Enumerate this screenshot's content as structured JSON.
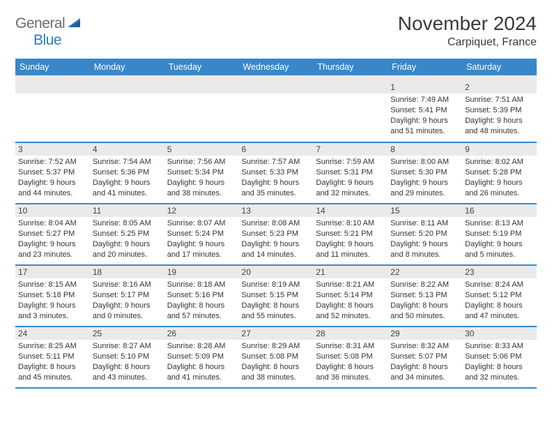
{
  "logo": {
    "general": "General",
    "blue": "Blue"
  },
  "title": "November 2024",
  "location": "Carpiquet, France",
  "colors": {
    "header_bg": "#3a87c8",
    "header_text": "#ffffff",
    "daynum_bg": "#e9eaec",
    "rule": "#3a87c8",
    "logo_gray": "#6b6b6b",
    "logo_blue": "#2e7cc0",
    "text": "#333333"
  },
  "day_headers": [
    "Sunday",
    "Monday",
    "Tuesday",
    "Wednesday",
    "Thursday",
    "Friday",
    "Saturday"
  ],
  "weeks": [
    [
      {
        "n": "",
        "sr": "",
        "ss": "",
        "dl": ""
      },
      {
        "n": "",
        "sr": "",
        "ss": "",
        "dl": ""
      },
      {
        "n": "",
        "sr": "",
        "ss": "",
        "dl": ""
      },
      {
        "n": "",
        "sr": "",
        "ss": "",
        "dl": ""
      },
      {
        "n": "",
        "sr": "",
        "ss": "",
        "dl": ""
      },
      {
        "n": "1",
        "sr": "Sunrise: 7:49 AM",
        "ss": "Sunset: 5:41 PM",
        "dl": "Daylight: 9 hours and 51 minutes."
      },
      {
        "n": "2",
        "sr": "Sunrise: 7:51 AM",
        "ss": "Sunset: 5:39 PM",
        "dl": "Daylight: 9 hours and 48 minutes."
      }
    ],
    [
      {
        "n": "3",
        "sr": "Sunrise: 7:52 AM",
        "ss": "Sunset: 5:37 PM",
        "dl": "Daylight: 9 hours and 44 minutes."
      },
      {
        "n": "4",
        "sr": "Sunrise: 7:54 AM",
        "ss": "Sunset: 5:36 PM",
        "dl": "Daylight: 9 hours and 41 minutes."
      },
      {
        "n": "5",
        "sr": "Sunrise: 7:56 AM",
        "ss": "Sunset: 5:34 PM",
        "dl": "Daylight: 9 hours and 38 minutes."
      },
      {
        "n": "6",
        "sr": "Sunrise: 7:57 AM",
        "ss": "Sunset: 5:33 PM",
        "dl": "Daylight: 9 hours and 35 minutes."
      },
      {
        "n": "7",
        "sr": "Sunrise: 7:59 AM",
        "ss": "Sunset: 5:31 PM",
        "dl": "Daylight: 9 hours and 32 minutes."
      },
      {
        "n": "8",
        "sr": "Sunrise: 8:00 AM",
        "ss": "Sunset: 5:30 PM",
        "dl": "Daylight: 9 hours and 29 minutes."
      },
      {
        "n": "9",
        "sr": "Sunrise: 8:02 AM",
        "ss": "Sunset: 5:28 PM",
        "dl": "Daylight: 9 hours and 26 minutes."
      }
    ],
    [
      {
        "n": "10",
        "sr": "Sunrise: 8:04 AM",
        "ss": "Sunset: 5:27 PM",
        "dl": "Daylight: 9 hours and 23 minutes."
      },
      {
        "n": "11",
        "sr": "Sunrise: 8:05 AM",
        "ss": "Sunset: 5:25 PM",
        "dl": "Daylight: 9 hours and 20 minutes."
      },
      {
        "n": "12",
        "sr": "Sunrise: 8:07 AM",
        "ss": "Sunset: 5:24 PM",
        "dl": "Daylight: 9 hours and 17 minutes."
      },
      {
        "n": "13",
        "sr": "Sunrise: 8:08 AM",
        "ss": "Sunset: 5:23 PM",
        "dl": "Daylight: 9 hours and 14 minutes."
      },
      {
        "n": "14",
        "sr": "Sunrise: 8:10 AM",
        "ss": "Sunset: 5:21 PM",
        "dl": "Daylight: 9 hours and 11 minutes."
      },
      {
        "n": "15",
        "sr": "Sunrise: 8:11 AM",
        "ss": "Sunset: 5:20 PM",
        "dl": "Daylight: 9 hours and 8 minutes."
      },
      {
        "n": "16",
        "sr": "Sunrise: 8:13 AM",
        "ss": "Sunset: 5:19 PM",
        "dl": "Daylight: 9 hours and 5 minutes."
      }
    ],
    [
      {
        "n": "17",
        "sr": "Sunrise: 8:15 AM",
        "ss": "Sunset: 5:18 PM",
        "dl": "Daylight: 9 hours and 3 minutes."
      },
      {
        "n": "18",
        "sr": "Sunrise: 8:16 AM",
        "ss": "Sunset: 5:17 PM",
        "dl": "Daylight: 9 hours and 0 minutes."
      },
      {
        "n": "19",
        "sr": "Sunrise: 8:18 AM",
        "ss": "Sunset: 5:16 PM",
        "dl": "Daylight: 8 hours and 57 minutes."
      },
      {
        "n": "20",
        "sr": "Sunrise: 8:19 AM",
        "ss": "Sunset: 5:15 PM",
        "dl": "Daylight: 8 hours and 55 minutes."
      },
      {
        "n": "21",
        "sr": "Sunrise: 8:21 AM",
        "ss": "Sunset: 5:14 PM",
        "dl": "Daylight: 8 hours and 52 minutes."
      },
      {
        "n": "22",
        "sr": "Sunrise: 8:22 AM",
        "ss": "Sunset: 5:13 PM",
        "dl": "Daylight: 8 hours and 50 minutes."
      },
      {
        "n": "23",
        "sr": "Sunrise: 8:24 AM",
        "ss": "Sunset: 5:12 PM",
        "dl": "Daylight: 8 hours and 47 minutes."
      }
    ],
    [
      {
        "n": "24",
        "sr": "Sunrise: 8:25 AM",
        "ss": "Sunset: 5:11 PM",
        "dl": "Daylight: 8 hours and 45 minutes."
      },
      {
        "n": "25",
        "sr": "Sunrise: 8:27 AM",
        "ss": "Sunset: 5:10 PM",
        "dl": "Daylight: 8 hours and 43 minutes."
      },
      {
        "n": "26",
        "sr": "Sunrise: 8:28 AM",
        "ss": "Sunset: 5:09 PM",
        "dl": "Daylight: 8 hours and 41 minutes."
      },
      {
        "n": "27",
        "sr": "Sunrise: 8:29 AM",
        "ss": "Sunset: 5:08 PM",
        "dl": "Daylight: 8 hours and 38 minutes."
      },
      {
        "n": "28",
        "sr": "Sunrise: 8:31 AM",
        "ss": "Sunset: 5:08 PM",
        "dl": "Daylight: 8 hours and 36 minutes."
      },
      {
        "n": "29",
        "sr": "Sunrise: 8:32 AM",
        "ss": "Sunset: 5:07 PM",
        "dl": "Daylight: 8 hours and 34 minutes."
      },
      {
        "n": "30",
        "sr": "Sunrise: 8:33 AM",
        "ss": "Sunset: 5:06 PM",
        "dl": "Daylight: 8 hours and 32 minutes."
      }
    ]
  ]
}
